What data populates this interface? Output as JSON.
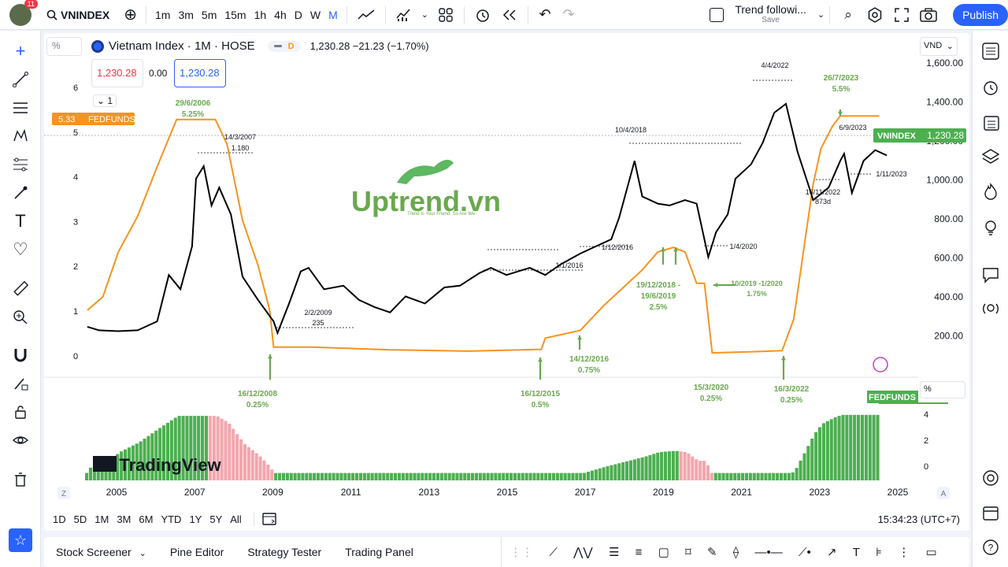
{
  "topbar": {
    "notifications": "11",
    "symbol": "VNINDEX",
    "intervals": [
      "1m",
      "3m",
      "5m",
      "15m",
      "1h",
      "4h",
      "D",
      "W",
      "M"
    ],
    "layout_name": "Trend followi...",
    "save_label": "Save",
    "publish_label": "Publish"
  },
  "header": {
    "title": "Vietnam Index · 1M · HOSE",
    "dot_label": "D",
    "quote": "1,230.28 −21.23 (−1.70%)",
    "sell_price": "1,230.28",
    "spread": "0.00",
    "buy_price": "1,230.28",
    "collapse_count": "1",
    "percent_label": "%",
    "currency": "VND",
    "fed_tag_value": "5.33",
    "fed_tag_name": "FEDFUNDS",
    "vni_tag_name": "VNINDEX",
    "vni_tag_value": "1,230.28",
    "lower_fed_label": "FEDFUNDS",
    "lower_percent": "%"
  },
  "watermark": {
    "brand": "Uptrend.vn",
    "slogan": "Trend Is Your Friend. So Are We.",
    "tv": "TradingView"
  },
  "axes": {
    "right_ticks": [
      "1,600.00",
      "1,400.00",
      "1,200.00",
      "1,000.00",
      "800.00",
      "600.00",
      "400.00",
      "200.00"
    ],
    "left_ticks": [
      "6",
      "5",
      "4",
      "3",
      "2",
      "1",
      "0"
    ],
    "lower_ticks": [
      "4",
      "2",
      "0"
    ],
    "years": [
      "2005",
      "2007",
      "2009",
      "2011",
      "2013",
      "2015",
      "2017",
      "2019",
      "2021",
      "2023",
      "2025"
    ],
    "z_label": "Z",
    "a_label": "A"
  },
  "annotations": {
    "a1_date": "29/6/2006",
    "a1_rate": "5.25%",
    "a2_date": "14/3/2007",
    "a2_val": "1.180",
    "a3_date": "2/2/2009",
    "a3_val": "235",
    "a4": "10/4/2018",
    "a5": "4/4/2022",
    "a6_date": "26/7/2023",
    "a6_rate": "5.5%",
    "a7": "6/9/2023",
    "a8": "1/11/2023",
    "a9_date": "16/11/2022",
    "a9_val": "873d",
    "a10": "1/12/2016",
    "a11": "1/1/2016",
    "a12": "1/4/2020",
    "a13_line1": "19/12/2018 -",
    "a13_line2": "19/6/2019",
    "a13_rate": "2.5%",
    "a14_line1": "10/2019  -1/2020",
    "a14_rate": "1.75%",
    "a15_date": "14/12/2016",
    "a15_rate": "0.75%",
    "a16_date": "16/12/2008",
    "a16_rate": "0.25%",
    "a17_date": "16/12/2015",
    "a17_rate": "0.5%",
    "a18_date": "15/3/2020",
    "a18_rate": "0.25%",
    "a19_date": "16/3/2022",
    "a19_rate": "0.25%"
  },
  "range_bar": {
    "ranges": [
      "1D",
      "5D",
      "1M",
      "3M",
      "6M",
      "YTD",
      "1Y",
      "5Y",
      "All"
    ],
    "clock": "15:34:23 (UTC+7)"
  },
  "bottom_tabs": [
    "Stock Screener",
    "Pine Editor",
    "Strategy Tester",
    "Trading Panel"
  ],
  "colors": {
    "fed_line": "#f7931e",
    "index_line": "#000000",
    "bar_up": "#4caf50",
    "bar_down": "#f4a6ad",
    "accent": "#2962ff",
    "annotation_green": "#6aa84f"
  },
  "chart_data": {
    "type": "line",
    "x_range": [
      2004,
      2025
    ],
    "series": [
      {
        "name": "VNINDEX",
        "unit": "VND",
        "ylim": [
          0,
          1600
        ],
        "points": [
          [
            2004.2,
            270
          ],
          [
            2004.5,
            250
          ],
          [
            2005.0,
            245
          ],
          [
            2005.5,
            250
          ],
          [
            2006.0,
            300
          ],
          [
            2006.3,
            560
          ],
          [
            2006.6,
            480
          ],
          [
            2006.9,
            720
          ],
          [
            2007.0,
            1100
          ],
          [
            2007.2,
            1170
          ],
          [
            2007.4,
            950
          ],
          [
            2007.6,
            1050
          ],
          [
            2007.9,
            900
          ],
          [
            2008.2,
            550
          ],
          [
            2008.6,
            420
          ],
          [
            2009.0,
            300
          ],
          [
            2009.1,
            235
          ],
          [
            2009.4,
            400
          ],
          [
            2009.7,
            580
          ],
          [
            2009.9,
            600
          ],
          [
            2010.3,
            480
          ],
          [
            2010.8,
            500
          ],
          [
            2011.2,
            420
          ],
          [
            2011.6,
            380
          ],
          [
            2012.0,
            350
          ],
          [
            2012.4,
            440
          ],
          [
            2012.9,
            400
          ],
          [
            2013.4,
            490
          ],
          [
            2013.8,
            500
          ],
          [
            2014.3,
            570
          ],
          [
            2014.6,
            600
          ],
          [
            2015.0,
            560
          ],
          [
            2015.6,
            600
          ],
          [
            2016.0,
            560
          ],
          [
            2016.4,
            620
          ],
          [
            2016.9,
            680
          ],
          [
            2017.3,
            720
          ],
          [
            2017.7,
            760
          ],
          [
            2017.9,
            880
          ],
          [
            2018.2,
            1120
          ],
          [
            2018.3,
            1200
          ],
          [
            2018.5,
            1000
          ],
          [
            2018.9,
            960
          ],
          [
            2019.2,
            950
          ],
          [
            2019.6,
            980
          ],
          [
            2019.9,
            960
          ],
          [
            2020.2,
            660
          ],
          [
            2020.4,
            800
          ],
          [
            2020.7,
            900
          ],
          [
            2020.9,
            1100
          ],
          [
            2021.3,
            1180
          ],
          [
            2021.6,
            1300
          ],
          [
            2021.9,
            1470
          ],
          [
            2022.2,
            1520
          ],
          [
            2022.5,
            1250
          ],
          [
            2022.8,
            1050
          ],
          [
            2022.9,
            980
          ],
          [
            2023.3,
            1050
          ],
          [
            2023.6,
            1200
          ],
          [
            2023.7,
            1240
          ],
          [
            2023.9,
            1020
          ],
          [
            2024.2,
            1200
          ],
          [
            2024.5,
            1260
          ],
          [
            2024.8,
            1230
          ]
        ]
      },
      {
        "name": "FEDFUNDS",
        "unit": "%",
        "ylim": [
          0,
          6
        ],
        "points": [
          [
            2004.2,
            1.0
          ],
          [
            2004.6,
            1.3
          ],
          [
            2005.0,
            2.3
          ],
          [
            2005.5,
            3.1
          ],
          [
            2006.0,
            4.2
          ],
          [
            2006.5,
            5.25
          ],
          [
            2007.5,
            5.25
          ],
          [
            2007.8,
            4.7
          ],
          [
            2008.2,
            3.0
          ],
          [
            2008.6,
            2.0
          ],
          [
            2008.9,
            1.0
          ],
          [
            2009.0,
            0.18
          ],
          [
            2010.0,
            0.18
          ],
          [
            2012.0,
            0.12
          ],
          [
            2014.0,
            0.09
          ],
          [
            2015.9,
            0.13
          ],
          [
            2016.0,
            0.38
          ],
          [
            2016.9,
            0.55
          ],
          [
            2017.5,
            1.1
          ],
          [
            2018.0,
            1.5
          ],
          [
            2018.5,
            1.9
          ],
          [
            2018.9,
            2.3
          ],
          [
            2019.3,
            2.4
          ],
          [
            2019.6,
            2.3
          ],
          [
            2019.9,
            1.6
          ],
          [
            2020.1,
            1.6
          ],
          [
            2020.3,
            0.05
          ],
          [
            2021.5,
            0.08
          ],
          [
            2022.1,
            0.1
          ],
          [
            2022.4,
            0.8
          ],
          [
            2022.7,
            2.6
          ],
          [
            2022.9,
            3.8
          ],
          [
            2023.1,
            4.6
          ],
          [
            2023.4,
            5.1
          ],
          [
            2023.6,
            5.33
          ],
          [
            2024.6,
            5.33
          ]
        ]
      }
    ],
    "lower_series": {
      "name": "FEDFUNDS",
      "unit": "%",
      "ylim": [
        0,
        5
      ]
    }
  }
}
